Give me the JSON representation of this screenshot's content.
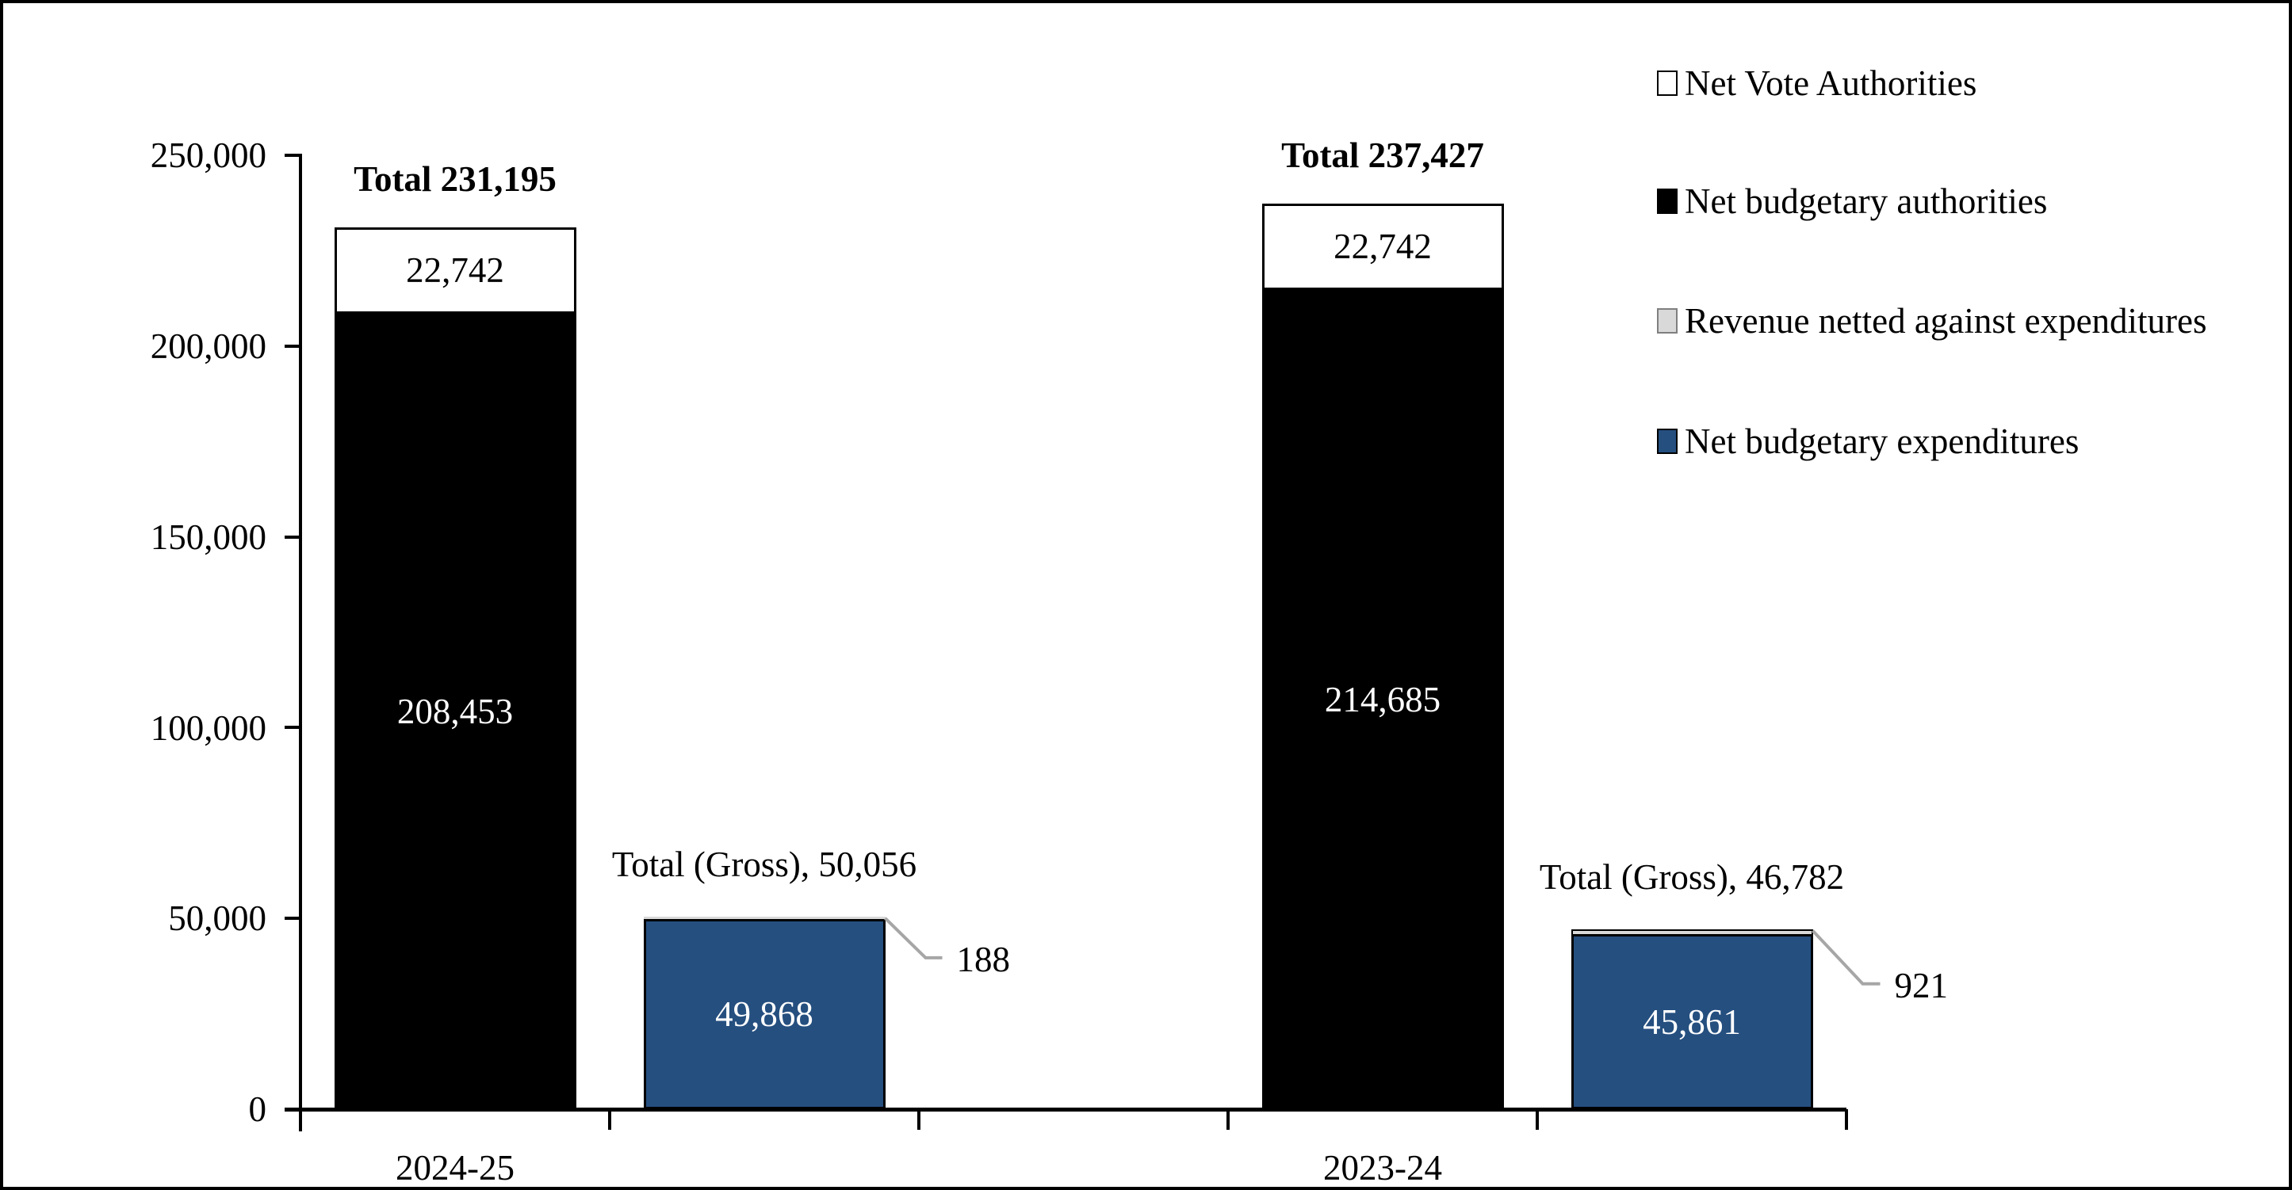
{
  "chart_data": {
    "type": "bar",
    "stacked": true,
    "title": "",
    "grid": false,
    "legend_position": "right",
    "ylim": [
      0,
      250000
    ],
    "ytick_interval": 50000,
    "ytick_labels_top_to_bottom": [
      "250,000",
      "200,000",
      "150,000",
      "100,000",
      "50,000",
      "0"
    ],
    "categories": [
      "2024-25",
      "2023-24"
    ],
    "colors": {
      "black_series": "#000000",
      "white_series": "#FFFFFF",
      "gray_series": "#D9D9D9",
      "blue_series": "#254F7F",
      "segment_border": "#000000",
      "gray_swatch_border": "#7F7F7F",
      "callout_line": "#A6A6A6",
      "text": "#000000"
    },
    "legend": [
      {
        "label": "Net Vote Authorities",
        "color": "#FFFFFF",
        "border": "#000000"
      },
      {
        "label": "Net budgetary authorities",
        "color": "#000000",
        "border": "#000000"
      },
      {
        "label": "Revenue netted against expenditures",
        "color": "#D9D9D9",
        "border": "#7F7F7F"
      },
      {
        "label": "Net budgetary expenditures",
        "color": "#254F7F",
        "border": "#000000"
      }
    ],
    "bars": [
      {
        "category": "2024-25",
        "slot": 0,
        "total_value": 231195,
        "total_label": "Total 231,195",
        "total_bold": true,
        "segments": [
          {
            "name": "Net budgetary authorities",
            "value": 208453,
            "label": "208,453",
            "color": "#000000",
            "label_color": "#FFFFFF"
          },
          {
            "name": "Net Vote Authorities",
            "value": 22742,
            "label": "22,742",
            "color": "#FFFFFF",
            "label_color": "#000000"
          }
        ]
      },
      {
        "category": "2024-25",
        "slot": 1,
        "total_value": 50056,
        "total_label": "Total (Gross), 50,056",
        "total_bold": false,
        "segments": [
          {
            "name": "Net budgetary expenditures",
            "value": 49868,
            "label": "49,868",
            "color": "#254F7F",
            "label_color": "#FFFFFF"
          },
          {
            "name": "Revenue netted against expenditures",
            "value": 188,
            "label": "",
            "color": "#D9D9D9",
            "callout": "188",
            "callout_offsets": [
              51,
              50,
              21
            ]
          }
        ]
      },
      {
        "category": "2023-24",
        "slot": 3,
        "total_value": 237427,
        "total_label": "Total 237,427",
        "total_bold": true,
        "segments": [
          {
            "name": "Net budgetary authorities",
            "value": 214685,
            "label": "214,685",
            "color": "#000000",
            "label_color": "#FFFFFF"
          },
          {
            "name": "Net Vote Authorities",
            "value": 22742,
            "label": "22,742",
            "color": "#FFFFFF",
            "label_color": "#000000"
          }
        ]
      },
      {
        "category": "2023-24",
        "slot": 4,
        "total_value": 46782,
        "total_label": "Total (Gross), 46,782",
        "total_bold": false,
        "segments": [
          {
            "name": "Net budgetary expenditures",
            "value": 45861,
            "label": "45,861",
            "color": "#254F7F",
            "label_color": "#FFFFFF"
          },
          {
            "name": "Revenue netted against expenditures",
            "value": 921,
            "label": "",
            "color": "#D9D9D9",
            "callout": "921",
            "callout_offsets": [
              63,
              67,
              22
            ]
          }
        ]
      }
    ],
    "callouts": [
      "188",
      "921"
    ]
  }
}
